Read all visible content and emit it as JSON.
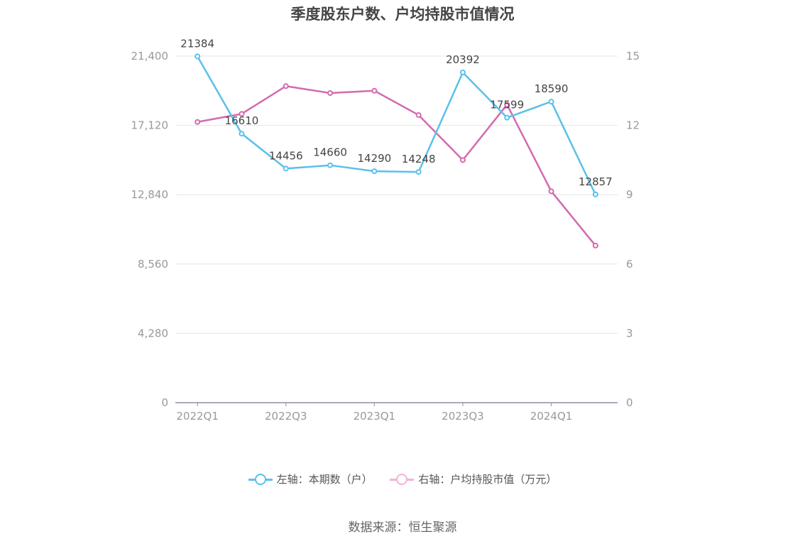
{
  "chart_data": {
    "type": "line",
    "title": "季度股东户数、户均持股市值情况",
    "categories": [
      "2022Q1",
      "2022Q2",
      "2022Q3",
      "2022Q4",
      "2023Q1",
      "2023Q2",
      "2023Q3",
      "2023Q4",
      "2024Q1",
      "2024Q2"
    ],
    "x_tick_labels": [
      "2022Q1",
      "2022Q3",
      "2023Q1",
      "2023Q3",
      "2024Q1"
    ],
    "y_left": {
      "ticks": [
        "0",
        "4,280",
        "8,560",
        "12,840",
        "17,120",
        "21,400"
      ],
      "ylim": [
        0,
        21400
      ]
    },
    "y_right": {
      "ticks": [
        "0",
        "3",
        "6",
        "9",
        "12",
        "15"
      ],
      "ylim": [
        0,
        15
      ]
    },
    "grid": true,
    "legend_position": "bottom",
    "series": [
      {
        "name": "左轴：本期数（户）",
        "axis": "left",
        "color": "#5bc0eb",
        "values": [
          21384,
          16610,
          14456,
          14660,
          14290,
          14248,
          20392,
          17599,
          18590,
          12857
        ],
        "labels": [
          "21384",
          "16610",
          "14456",
          "14660",
          "14290",
          "14248",
          "20392",
          "17599",
          "18590",
          "12857"
        ]
      },
      {
        "name": "右轴：户均持股市值（万元）",
        "axis": "right",
        "color": "#d36ab0",
        "values": [
          12.15,
          12.5,
          13.7,
          13.4,
          13.5,
          12.45,
          10.5,
          12.9,
          9.15,
          6.8
        ]
      }
    ]
  },
  "legend": {
    "left_label": "左轴：本期数（户）",
    "right_label": "右轴：户均持股市值（万元）"
  },
  "source": "数据来源：恒生聚源"
}
